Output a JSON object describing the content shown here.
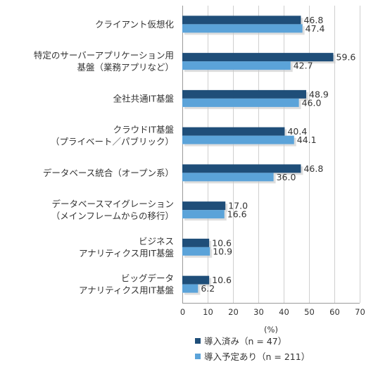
{
  "chart_data": {
    "type": "bar",
    "orientation": "horizontal",
    "categories": [
      [
        "クライアント仮想化"
      ],
      [
        "特定のサーバーアプリケーション用",
        "基盤（業務アプリなど）"
      ],
      [
        "全社共通IT基盤"
      ],
      [
        "クラウドIT基盤",
        "（プライベート／パブリック）"
      ],
      [
        "データベース統合（オープン系）"
      ],
      [
        "データベースマイグレーション",
        "（メインフレームからの移行）"
      ],
      [
        "ビジネス",
        "アナリティクス用IT基盤"
      ],
      [
        "ビッグデータ",
        "アナリティクス用IT基盤"
      ]
    ],
    "series": [
      {
        "name": "導入済み（n = 47）",
        "color": "#1f4e79",
        "values": [
          46.8,
          59.6,
          48.9,
          40.4,
          46.8,
          17.0,
          10.6,
          10.6
        ],
        "value_labels": [
          "46.8",
          "59.6",
          "48.9",
          "40.4",
          "46.8",
          "17.0",
          "10.6",
          "10.6"
        ]
      },
      {
        "name": "導入予定あり（n = 211）",
        "color": "#5ba3d9",
        "values": [
          47.4,
          42.7,
          46.0,
          44.1,
          36.0,
          16.6,
          10.9,
          6.2
        ],
        "value_labels": [
          "47.4",
          "42.7",
          "46.0",
          "44.1",
          "36.0",
          "16.6",
          "10.9",
          "6.2"
        ]
      }
    ],
    "xlim": [
      0,
      70
    ],
    "xticks": [
      0,
      10,
      20,
      30,
      40,
      50,
      60,
      70
    ],
    "xtick_labels": [
      "0",
      "10",
      "20",
      "30",
      "40",
      "50",
      "60",
      "70"
    ],
    "xlabel": "(%)",
    "grid": true,
    "legend_position": "bottom"
  }
}
